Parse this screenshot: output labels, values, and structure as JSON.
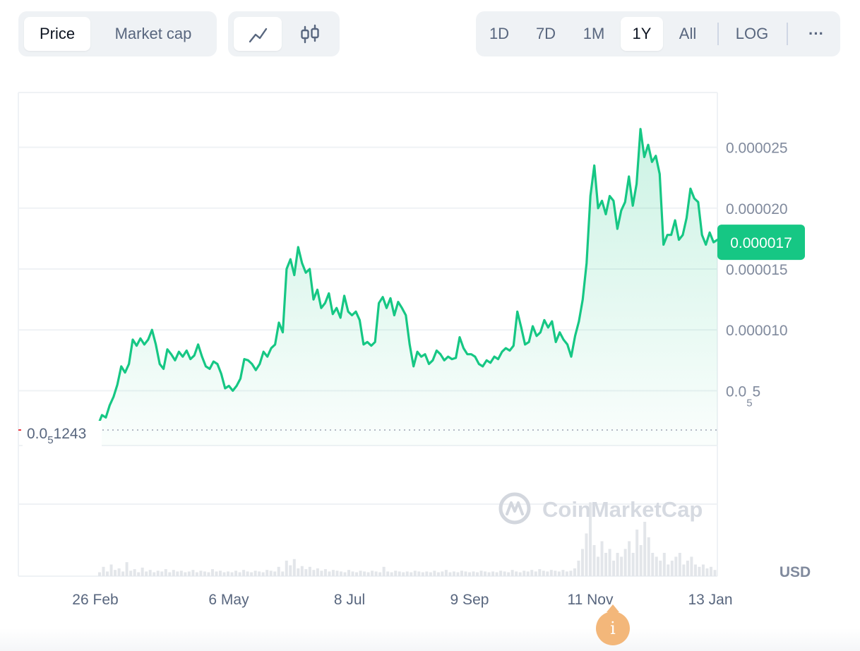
{
  "toolbar": {
    "metric_tabs": [
      {
        "label": "Price",
        "active": true
      },
      {
        "label": "Market cap",
        "active": false
      }
    ],
    "chart_types": [
      {
        "icon": "line-chart-icon",
        "active": true
      },
      {
        "icon": "candlestick-icon",
        "active": false
      }
    ],
    "ranges": [
      {
        "label": "1D",
        "active": false
      },
      {
        "label": "7D",
        "active": false
      },
      {
        "label": "1M",
        "active": false
      },
      {
        "label": "1Y",
        "active": true
      },
      {
        "label": "All",
        "active": false
      }
    ],
    "log_label": "LOG",
    "more_label": "···"
  },
  "colors": {
    "line": "#16c784",
    "fill": "#16c784",
    "badge": "#16c784",
    "grid": "#eff2f5",
    "axis_text": "#808a9d",
    "info": "#f3b77a"
  },
  "watermark": "CoinMarketCap",
  "currency_label": "USD",
  "info_label": "i",
  "chart_data": {
    "type": "area",
    "yticks": [
      {
        "value": 5e-06,
        "label_main": "0.0",
        "label_sub": "5",
        "label_tail": "5"
      },
      {
        "value": 1e-05,
        "label": "0.000010"
      },
      {
        "value": 1.5e-05,
        "label": "0.000015"
      },
      {
        "value": 2e-05,
        "label": "0.000020"
      },
      {
        "value": 2.5e-05,
        "label": "0.000025"
      }
    ],
    "ylim": [
      5e-07,
      2.95e-05
    ],
    "x_labels": [
      "26 Feb",
      "6 May",
      "8 Jul",
      "9 Sep",
      "11 Nov",
      "13 Jan"
    ],
    "current_price_label": "0.000017",
    "current_price": 1.72e-05,
    "start_price": {
      "value": 1.24e-06,
      "label_main": "0.0",
      "label_sub": "5",
      "label_tail": "1243"
    },
    "series": [
      {
        "values": [
          2.2e-06,
          3e-06,
          2.8e-06,
          3.8e-06,
          4.5e-06,
          5.5e-06,
          7e-06,
          6.5e-06,
          7.2e-06,
          9.2e-06,
          8.7e-06,
          9.3e-06,
          8.8e-06,
          9.2e-06,
          1e-05,
          8.8e-06,
          7.2e-06,
          6.8e-06,
          8.4e-06,
          8e-06,
          7.5e-06,
          8.2e-06,
          7.8e-06,
          8.3e-06,
          7.6e-06,
          7.9e-06,
          8.8e-06,
          7.8e-06,
          7e-06,
          6.8e-06,
          7.4e-06,
          7.2e-06,
          6.4e-06,
          5.2e-06,
          5.4e-06,
          5e-06,
          5.4e-06,
          6e-06,
          7.6e-06,
          7.5e-06,
          7.2e-06,
          6.7e-06,
          7.2e-06,
          8.2e-06,
          7.8e-06,
          8.5e-06,
          8.8e-06,
          1.06e-05,
          9.8e-06,
          1.5e-05,
          1.58e-05,
          1.45e-05,
          1.68e-05,
          1.55e-05,
          1.47e-05,
          1.5e-05,
          1.25e-05,
          1.33e-05,
          1.18e-05,
          1.22e-05,
          1.3e-05,
          1.13e-05,
          1.18e-05,
          1.1e-05,
          1.28e-05,
          1.15e-05,
          1.12e-05,
          1.15e-05,
          1.08e-05,
          8.8e-06,
          9e-06,
          8.7e-06,
          9e-06,
          1.22e-05,
          1.27e-05,
          1.18e-05,
          1.26e-05,
          1.12e-05,
          1.23e-05,
          1.18e-05,
          1.12e-05,
          8.8e-06,
          7e-06,
          8.2e-06,
          7.8e-06,
          8e-06,
          7.2e-06,
          7.5e-06,
          8.3e-06,
          8e-06,
          7.5e-06,
          7.8e-06,
          7.6e-06,
          7.7e-06,
          9.4e-06,
          8.5e-06,
          8e-06,
          8e-06,
          7.8e-06,
          7.2e-06,
          7e-06,
          7.5e-06,
          7.3e-06,
          7.8e-06,
          7.6e-06,
          8.2e-06,
          8.5e-06,
          8.3e-06,
          8.7e-06,
          1.15e-05,
          1.02e-05,
          8.8e-06,
          9e-06,
          1.03e-05,
          9.5e-06,
          9.8e-06,
          1.08e-05,
          1.02e-05,
          1.07e-05,
          9e-06,
          9.8e-06,
          9.2e-06,
          8.8e-06,
          7.8e-06,
          9.5e-06,
          1.07e-05,
          1.25e-05,
          1.55e-05,
          2.1e-05,
          2.35e-05,
          2e-05,
          2.06e-05,
          1.95e-05,
          2.1e-05,
          2.06e-05,
          1.83e-05,
          1.98e-05,
          2.05e-05,
          2.26e-05,
          2.02e-05,
          2.2e-05,
          2.65e-05,
          2.42e-05,
          2.52e-05,
          2.38e-05,
          2.43e-05,
          2.28e-05,
          1.7e-05,
          1.78e-05,
          1.78e-05,
          1.9e-05,
          1.74e-05,
          1.78e-05,
          1.92e-05,
          2.16e-05,
          2.08e-05,
          2.05e-05,
          1.78e-05,
          1.7e-05,
          1.8e-05,
          1.72e-05,
          1.74e-05
        ]
      }
    ],
    "volume": [
      0.05,
      0.12,
      0.06,
      0.15,
      0.08,
      0.1,
      0.06,
      0.18,
      0.07,
      0.09,
      0.05,
      0.11,
      0.06,
      0.08,
      0.05,
      0.07,
      0.06,
      0.09,
      0.05,
      0.08,
      0.06,
      0.07,
      0.05,
      0.06,
      0.08,
      0.05,
      0.07,
      0.06,
      0.05,
      0.09,
      0.06,
      0.07,
      0.05,
      0.06,
      0.05,
      0.07,
      0.05,
      0.08,
      0.06,
      0.05,
      0.07,
      0.06,
      0.05,
      0.08,
      0.07,
      0.06,
      0.12,
      0.06,
      0.2,
      0.14,
      0.22,
      0.1,
      0.13,
      0.09,
      0.12,
      0.08,
      0.1,
      0.07,
      0.09,
      0.06,
      0.08,
      0.07,
      0.06,
      0.05,
      0.08,
      0.06,
      0.05,
      0.07,
      0.06,
      0.05,
      0.07,
      0.06,
      0.05,
      0.12,
      0.06,
      0.05,
      0.07,
      0.06,
      0.05,
      0.06,
      0.05,
      0.07,
      0.06,
      0.05,
      0.06,
      0.05,
      0.07,
      0.05,
      0.06,
      0.08,
      0.05,
      0.06,
      0.05,
      0.07,
      0.06,
      0.05,
      0.06,
      0.05,
      0.07,
      0.06,
      0.05,
      0.06,
      0.05,
      0.07,
      0.06,
      0.05,
      0.08,
      0.06,
      0.05,
      0.07,
      0.06,
      0.08,
      0.06,
      0.09,
      0.07,
      0.06,
      0.08,
      0.07,
      0.06,
      0.08,
      0.06,
      0.07,
      0.1,
      0.2,
      0.35,
      0.55,
      0.95,
      0.4,
      0.25,
      0.45,
      0.3,
      0.35,
      0.2,
      0.3,
      0.25,
      0.35,
      0.45,
      0.3,
      0.6,
      0.4,
      0.7,
      0.5,
      0.3,
      0.25,
      0.2,
      0.3,
      0.15,
      0.2,
      0.25,
      0.3,
      0.15,
      0.2,
      0.25,
      0.15,
      0.12,
      0.15,
      0.1,
      0.12,
      0.08
    ]
  }
}
